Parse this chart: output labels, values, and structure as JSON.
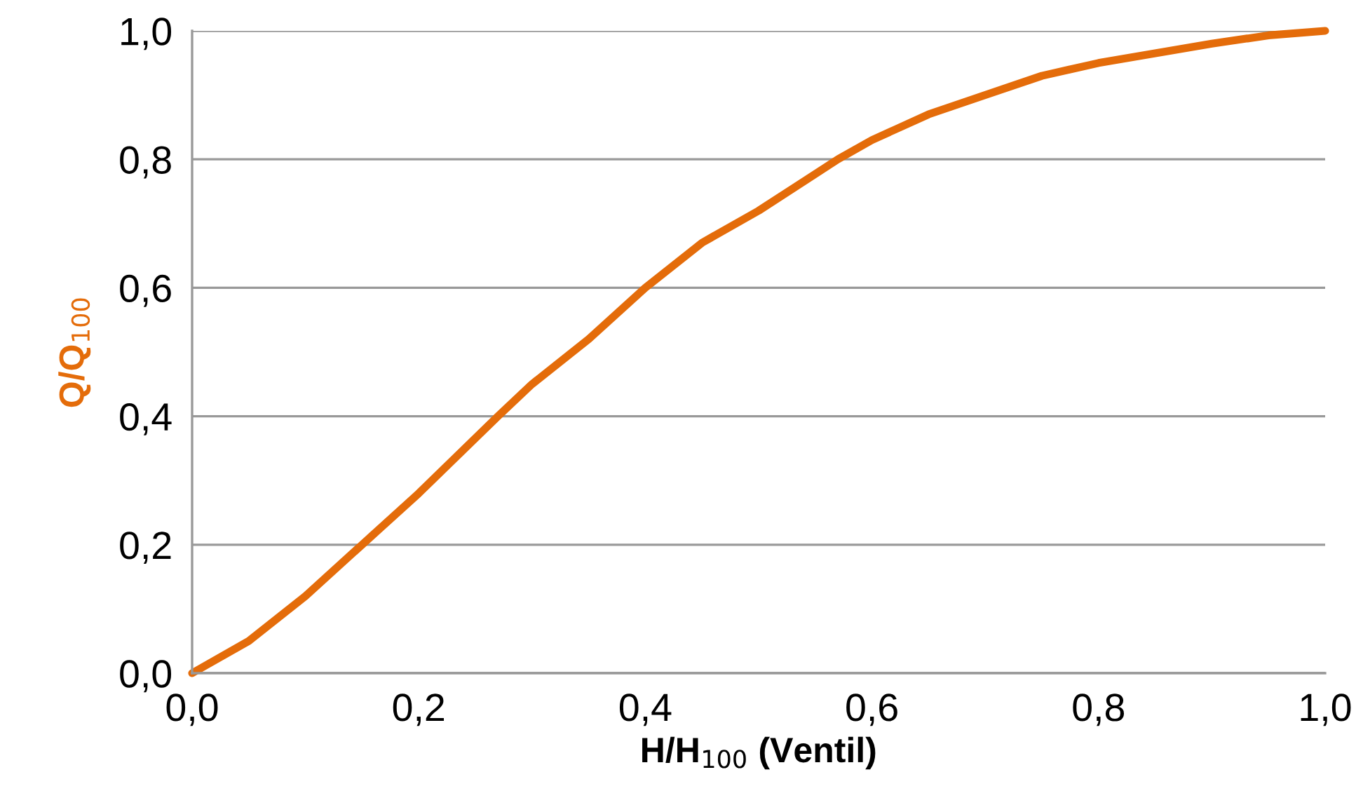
{
  "chart_data": {
    "type": "line",
    "xlabel": "H/H$_{100}$ (Ventil)",
    "ylabel": "Q/Q$_{100}$",
    "x": [
      0,
      0.05,
      0.1,
      0.15,
      0.2,
      0.27,
      0.3,
      0.35,
      0.4,
      0.45,
      0.5,
      0.57,
      0.6,
      0.65,
      0.7,
      0.75,
      0.8,
      0.85,
      0.9,
      0.95,
      1.0
    ],
    "series": [
      {
        "color": "#e46c0a",
        "values": [
          0,
          0.05,
          0.12,
          0.2,
          0.28,
          0.4,
          0.45,
          0.52,
          0.6,
          0.67,
          0.72,
          0.8,
          0.83,
          0.87,
          0.9,
          0.93,
          0.95,
          0.965,
          0.98,
          0.993,
          1.0
        ]
      }
    ],
    "xlim": [
      0,
      1.0
    ],
    "ylim": [
      0,
      1.0
    ],
    "xticks": [
      {
        "value": 0,
        "label": "0,0"
      },
      {
        "value": 0.2,
        "label": "0,2"
      },
      {
        "value": 0.4,
        "label": "0,4"
      },
      {
        "value": 0.6,
        "label": "0,6"
      },
      {
        "value": 0.8,
        "label": "0,8"
      },
      {
        "value": 1.0,
        "label": "1,0"
      }
    ],
    "yticks": [
      {
        "value": 0,
        "label": "0,0"
      },
      {
        "value": 0.2,
        "label": "0,2"
      },
      {
        "value": 0.4,
        "label": "0,4"
      },
      {
        "value": 0.6,
        "label": "0,6"
      },
      {
        "value": 0.8,
        "label": "0,8"
      },
      {
        "value": 1.0,
        "label": "1,0"
      }
    ],
    "grid": "y",
    "marker": "none",
    "line_style": "solid",
    "legend": false
  }
}
